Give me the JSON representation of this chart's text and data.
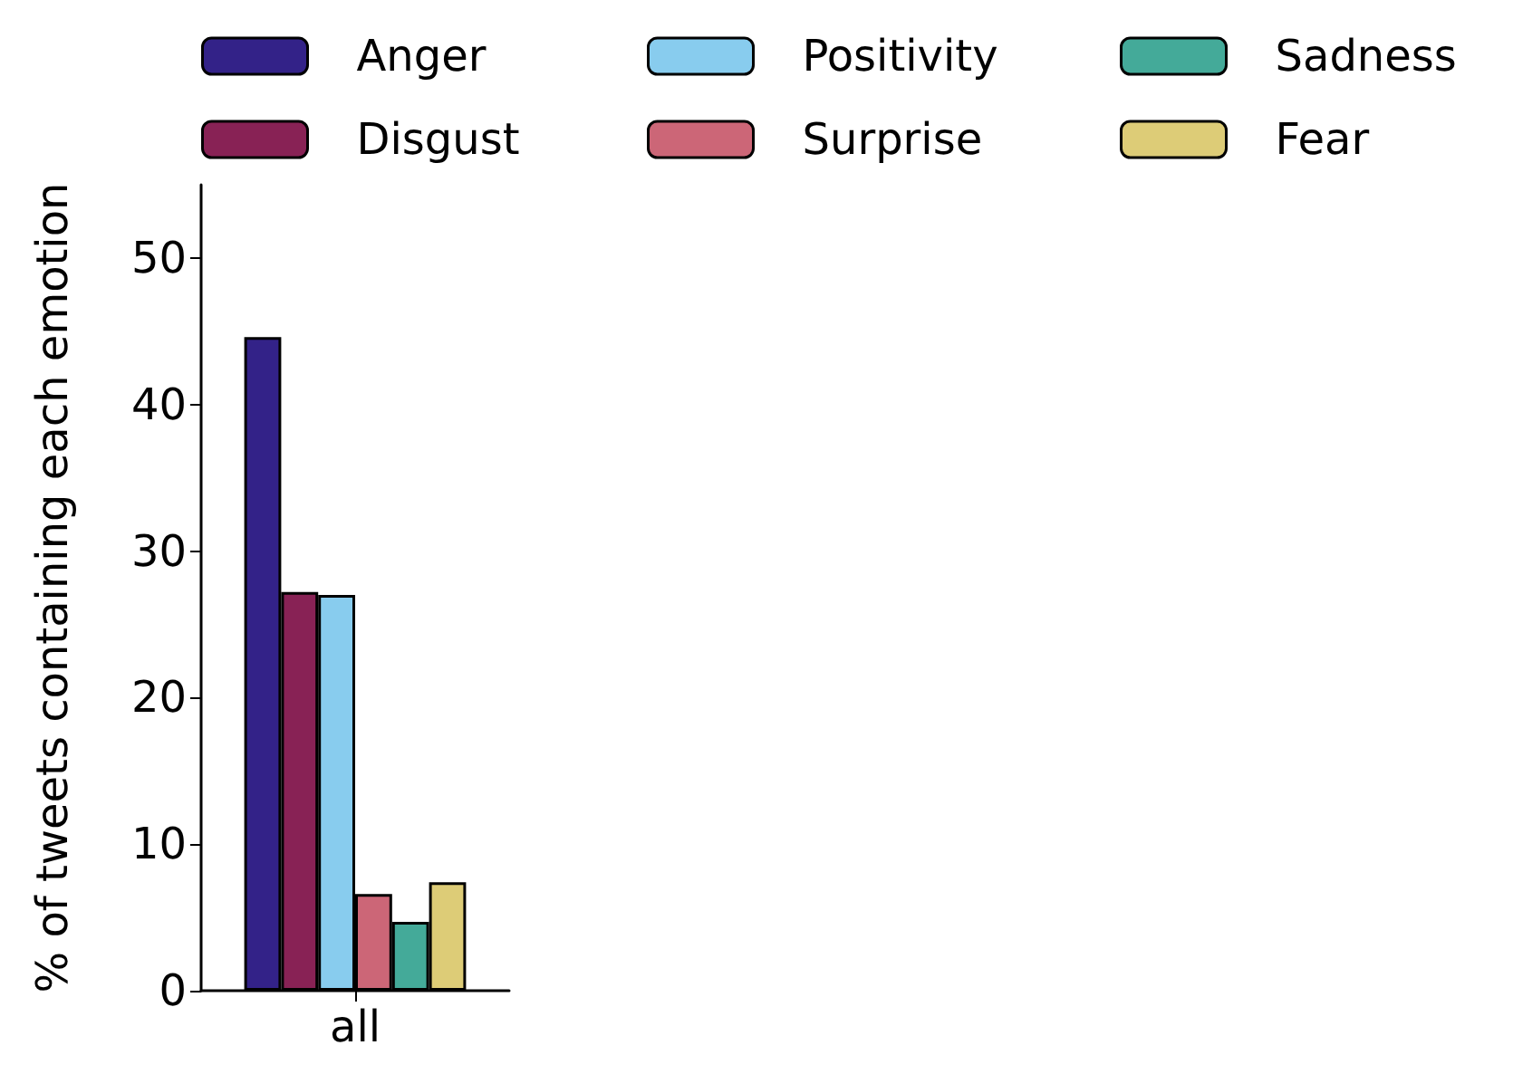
{
  "chart_data": {
    "type": "bar",
    "ylabel": "% of tweets containing each emotion",
    "categories": [
      "all"
    ],
    "series": [
      {
        "name": "Anger",
        "color": "#332288",
        "values": [
          44.6
        ]
      },
      {
        "name": "Disgust",
        "color": "#882255",
        "values": [
          27.2
        ]
      },
      {
        "name": "Positivity",
        "color": "#88ccee",
        "values": [
          27.0
        ]
      },
      {
        "name": "Surprise",
        "color": "#cc6677",
        "values": [
          6.6
        ]
      },
      {
        "name": "Sadness",
        "color": "#44aa99",
        "values": [
          4.7
        ]
      },
      {
        "name": "Fear",
        "color": "#ddcc77",
        "values": [
          7.4
        ]
      }
    ],
    "ylim": [
      0,
      55
    ],
    "yticks": [
      0,
      10,
      20,
      30,
      40,
      50
    ],
    "grid": false,
    "legend": "top"
  }
}
